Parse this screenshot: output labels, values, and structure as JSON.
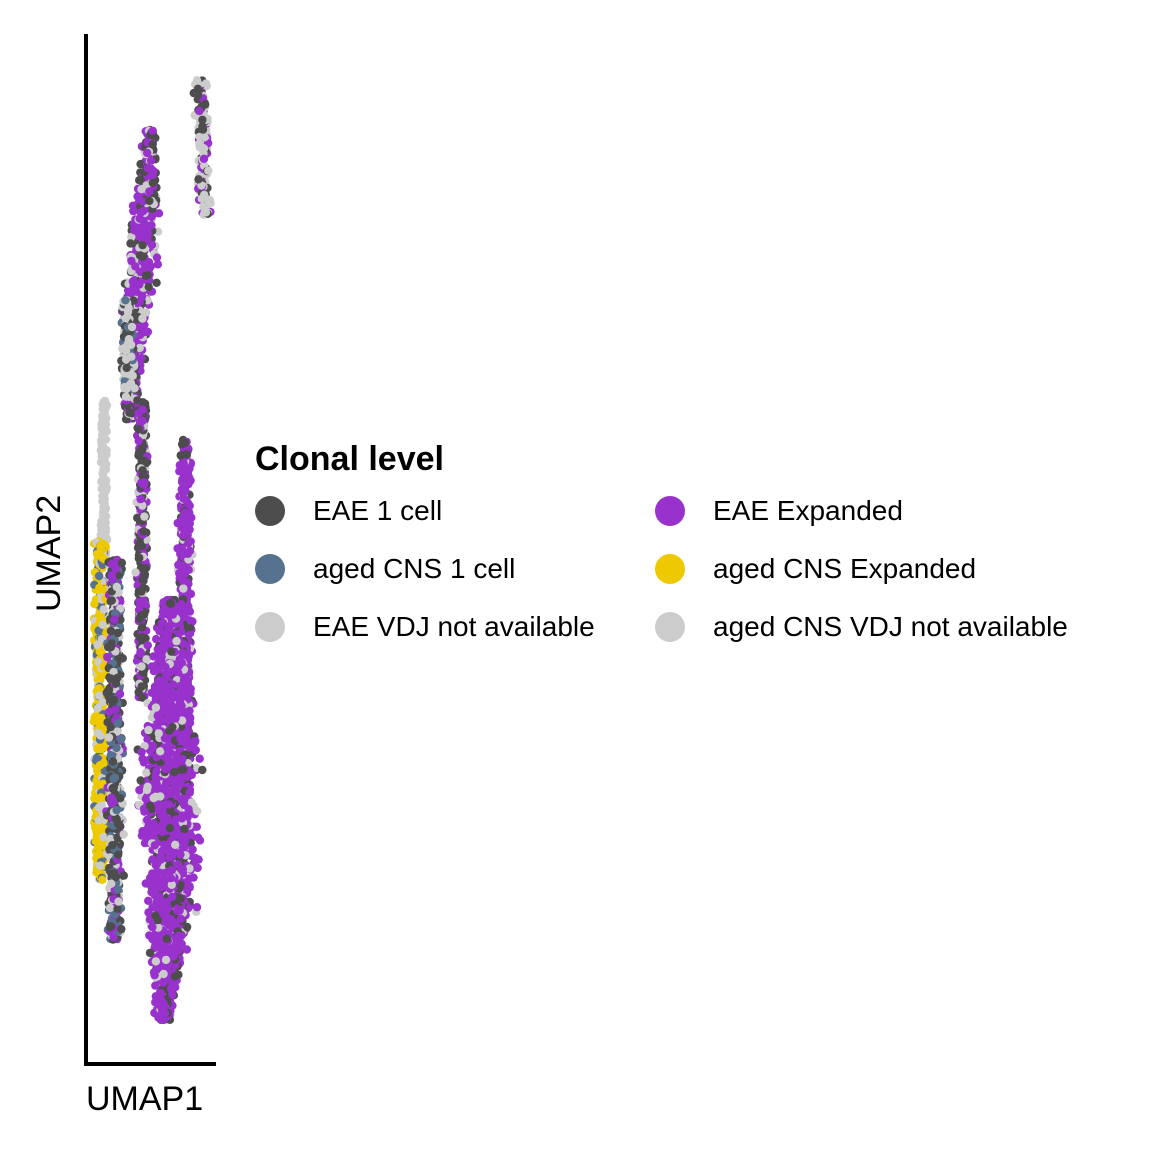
{
  "chart_data": {
    "type": "scatter",
    "title": "",
    "xlabel": "UMAP1",
    "ylabel": "UMAP2",
    "grid": false,
    "legend": {
      "title": "Clonal level",
      "placement": "right",
      "entries": [
        {
          "name": "EAE 1 cell",
          "color": "#4D4D4D"
        },
        {
          "name": "EAE Expanded",
          "color": "#9932CC"
        },
        {
          "name": "aged CNS 1 cell",
          "color": "#56728F"
        },
        {
          "name": "aged CNS Expanded",
          "color": "#EEC900"
        },
        {
          "name": "EAE VDJ not available",
          "color": "#CCCCCC"
        },
        {
          "name": "aged CNS VDJ not available",
          "color": "#CCCCCC"
        }
      ]
    }
  }
}
